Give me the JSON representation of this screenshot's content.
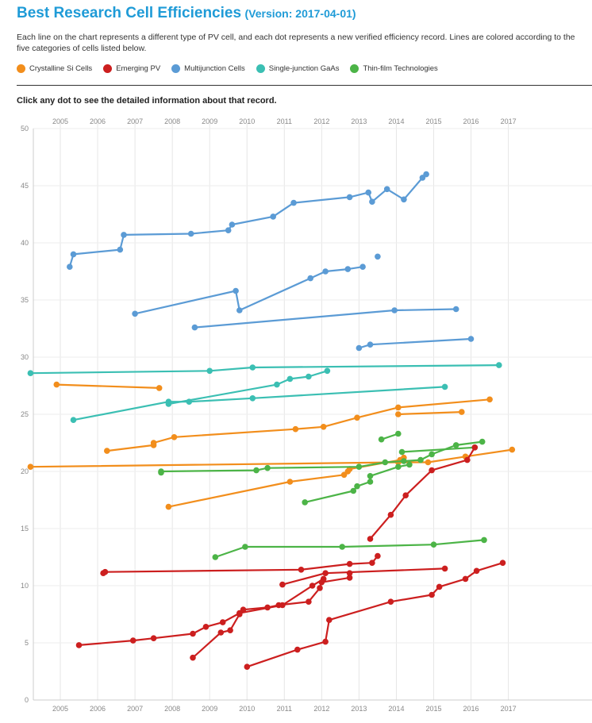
{
  "header": {
    "title": "Best Research Cell Efficiencies",
    "version": "(Version: 2017-04-01)",
    "description": "Each line on the chart represents a different type of PV cell, and each dot represents a new verified efficiency record. Lines are colored according to the five categories of cells listed below.",
    "hint": "Click any dot to see the detailed information about that record."
  },
  "legend": [
    {
      "label": "Crystalline Si Cells",
      "color": "#f28e1c"
    },
    {
      "label": "Emerging PV",
      "color": "#cc1f1f"
    },
    {
      "label": "Multijunction Cells",
      "color": "#5b9bd5"
    },
    {
      "label": "Single-junction GaAs",
      "color": "#3bbfb3"
    },
    {
      "label": "Thin-film Technologies",
      "color": "#4cb447"
    }
  ],
  "chart_data": {
    "type": "line",
    "xlim": [
      2004.2,
      2017.1
    ],
    "ylim": [
      0,
      50
    ],
    "x_ticks": [
      "2005",
      "2006",
      "2007",
      "2008",
      "2009",
      "2010",
      "2011",
      "2012",
      "2013",
      "2014",
      "2015",
      "2016",
      "2017"
    ],
    "y_ticks": [
      "0",
      "5",
      "10",
      "15",
      "20",
      "25",
      "30",
      "35",
      "40",
      "45",
      "50"
    ],
    "grid": true,
    "series": [
      {
        "category": "Multijunction Cells",
        "color": "#5b9bd5",
        "points": [
          [
            2005.25,
            37.9
          ],
          [
            2005.35,
            39.0
          ],
          [
            2006.6,
            39.4
          ],
          [
            2006.7,
            40.7
          ],
          [
            2008.5,
            40.8
          ],
          [
            2009.5,
            41.1
          ],
          [
            2009.6,
            41.6
          ],
          [
            2010.7,
            42.3
          ],
          [
            2011.25,
            43.5
          ],
          [
            2012.75,
            44.0
          ],
          [
            2013.25,
            44.4
          ],
          [
            2013.35,
            43.6
          ],
          [
            2013.75,
            44.7
          ],
          [
            2014.2,
            43.8
          ],
          [
            2014.7,
            45.7
          ],
          [
            2014.8,
            46.0
          ]
        ]
      },
      {
        "category": "Multijunction Cells",
        "color": "#5b9bd5",
        "points": [
          [
            2013.5,
            38.8
          ]
        ]
      },
      {
        "category": "Multijunction Cells",
        "color": "#5b9bd5",
        "points": [
          [
            2007.0,
            33.8
          ],
          [
            2009.7,
            35.8
          ],
          [
            2009.8,
            34.1
          ],
          [
            2011.7,
            36.9
          ],
          [
            2012.1,
            37.5
          ],
          [
            2012.7,
            37.7
          ],
          [
            2013.1,
            37.9
          ]
        ]
      },
      {
        "category": "Multijunction Cells",
        "color": "#5b9bd5",
        "points": [
          [
            2008.6,
            32.6
          ],
          [
            2013.95,
            34.1
          ],
          [
            2015.6,
            34.2
          ]
        ]
      },
      {
        "category": "Multijunction Cells",
        "color": "#5b9bd5",
        "points": [
          [
            2013.0,
            30.8
          ],
          [
            2013.3,
            31.1
          ],
          [
            2016.0,
            31.6
          ]
        ]
      },
      {
        "category": "Single-junction GaAs",
        "color": "#3bbfb3",
        "points": [
          [
            2004.2,
            28.6
          ],
          [
            2009.0,
            28.8
          ],
          [
            2010.15,
            29.1
          ],
          [
            2016.75,
            29.3
          ]
        ]
      },
      {
        "category": "Single-junction GaAs",
        "color": "#3bbfb3",
        "points": [
          [
            2007.9,
            25.9
          ],
          [
            2010.8,
            27.6
          ],
          [
            2011.15,
            28.1
          ],
          [
            2011.65,
            28.3
          ],
          [
            2012.15,
            28.8
          ]
        ]
      },
      {
        "category": "Single-junction GaAs",
        "color": "#3bbfb3",
        "points": [
          [
            2005.35,
            24.5
          ],
          [
            2007.9,
            26.1
          ],
          [
            2008.45,
            26.1
          ],
          [
            2010.15,
            26.4
          ],
          [
            2015.3,
            27.4
          ]
        ]
      },
      {
        "category": "Crystalline Si Cells",
        "color": "#f28e1c",
        "points": [
          [
            2004.9,
            27.6
          ],
          [
            2007.65,
            27.3
          ]
        ]
      },
      {
        "category": "Crystalline Si Cells",
        "color": "#f28e1c",
        "points": [
          [
            2006.25,
            21.8
          ],
          [
            2007.5,
            22.3
          ],
          [
            2007.5,
            22.5
          ],
          [
            2008.05,
            23.0
          ],
          [
            2011.3,
            23.7
          ],
          [
            2012.05,
            23.9
          ],
          [
            2012.95,
            24.7
          ],
          [
            2014.05,
            25.6
          ],
          [
            2016.5,
            26.3
          ]
        ]
      },
      {
        "category": "Crystalline Si Cells",
        "color": "#f28e1c",
        "points": [
          [
            2014.05,
            25.0
          ],
          [
            2015.75,
            25.2
          ]
        ]
      },
      {
        "category": "Crystalline Si Cells",
        "color": "#f28e1c",
        "points": [
          [
            2004.2,
            20.4
          ],
          [
            2014.05,
            20.8
          ],
          [
            2014.85,
            20.8
          ],
          [
            2015.85,
            21.3
          ],
          [
            2017.1,
            21.9
          ]
        ]
      },
      {
        "category": "Crystalline Si Cells",
        "color": "#f28e1c",
        "points": [
          [
            2007.9,
            16.9
          ],
          [
            2011.15,
            19.1
          ],
          [
            2012.6,
            19.7
          ],
          [
            2012.7,
            20.0
          ],
          [
            2012.75,
            20.2
          ],
          [
            2014.1,
            21.0
          ],
          [
            2014.2,
            21.2
          ]
        ]
      },
      {
        "category": "Thin-film Technologies",
        "color": "#4cb447",
        "points": [
          [
            2013.6,
            22.8
          ],
          [
            2014.05,
            23.3
          ]
        ]
      },
      {
        "category": "Thin-film Technologies",
        "color": "#4cb447",
        "points": [
          [
            2007.7,
            19.9
          ],
          [
            2007.7,
            20.0
          ],
          [
            2010.25,
            20.1
          ],
          [
            2010.55,
            20.3
          ],
          [
            2013.0,
            20.4
          ],
          [
            2013.7,
            20.8
          ],
          [
            2014.2,
            20.9
          ],
          [
            2014.65,
            21.0
          ],
          [
            2014.95,
            21.5
          ],
          [
            2015.6,
            22.3
          ],
          [
            2016.3,
            22.6
          ]
        ]
      },
      {
        "category": "Thin-film Technologies",
        "color": "#4cb447",
        "points": [
          [
            2014.15,
            21.7
          ],
          [
            2016.1,
            22.1
          ]
        ]
      },
      {
        "category": "Thin-film Technologies",
        "color": "#4cb447",
        "points": [
          [
            2011.55,
            17.3
          ],
          [
            2012.85,
            18.3
          ],
          [
            2012.95,
            18.7
          ],
          [
            2013.3,
            19.1
          ],
          [
            2013.3,
            19.6
          ],
          [
            2014.05,
            20.4
          ],
          [
            2014.35,
            20.6
          ]
        ]
      },
      {
        "category": "Thin-film Technologies",
        "color": "#4cb447",
        "points": [
          [
            2009.15,
            12.5
          ],
          [
            2009.95,
            13.4
          ],
          [
            2012.55,
            13.4
          ],
          [
            2015.0,
            13.6
          ],
          [
            2016.35,
            14.0
          ]
        ]
      },
      {
        "category": "Emerging PV",
        "color": "#cc1f1f",
        "points": [
          [
            2013.3,
            14.1
          ],
          [
            2013.85,
            16.2
          ],
          [
            2014.25,
            17.9
          ],
          [
            2014.95,
            20.1
          ],
          [
            2015.9,
            21.0
          ],
          [
            2016.1,
            22.1
          ]
        ]
      },
      {
        "category": "Emerging PV",
        "color": "#cc1f1f",
        "points": [
          [
            2006.15,
            11.1
          ],
          [
            2006.2,
            11.2
          ],
          [
            2011.45,
            11.4
          ],
          [
            2012.75,
            11.9
          ],
          [
            2013.35,
            12.0
          ],
          [
            2013.5,
            12.6
          ]
        ]
      },
      {
        "category": "Emerging PV",
        "color": "#cc1f1f",
        "points": [
          [
            2010.95,
            10.1
          ],
          [
            2012.1,
            11.1
          ],
          [
            2015.3,
            11.5
          ]
        ]
      },
      {
        "category": "Emerging PV",
        "color": "#cc1f1f",
        "points": [
          [
            2008.55,
            3.7
          ],
          [
            2009.3,
            5.9
          ],
          [
            2009.55,
            6.1
          ],
          [
            2009.8,
            7.5
          ],
          [
            2009.9,
            7.9
          ],
          [
            2010.55,
            8.1
          ],
          [
            2010.85,
            8.3
          ],
          [
            2011.65,
            8.6
          ],
          [
            2011.95,
            9.8
          ],
          [
            2012.0,
            10.3
          ],
          [
            2012.75,
            10.7
          ],
          [
            2012.75,
            11.1
          ]
        ]
      },
      {
        "category": "Emerging PV",
        "color": "#cc1f1f",
        "points": [
          [
            2005.5,
            4.8
          ],
          [
            2006.95,
            5.2
          ],
          [
            2007.5,
            5.4
          ],
          [
            2008.55,
            5.8
          ],
          [
            2008.9,
            6.4
          ],
          [
            2009.35,
            6.8
          ],
          [
            2009.8,
            7.6
          ],
          [
            2010.95,
            8.3
          ],
          [
            2011.75,
            10.0
          ],
          [
            2012.05,
            10.6
          ]
        ]
      },
      {
        "category": "Emerging PV",
        "color": "#cc1f1f",
        "points": [
          [
            2010.0,
            2.9
          ],
          [
            2011.35,
            4.4
          ],
          [
            2012.1,
            5.1
          ],
          [
            2012.2,
            7.0
          ],
          [
            2013.85,
            8.6
          ],
          [
            2014.95,
            9.2
          ],
          [
            2015.15,
            9.9
          ],
          [
            2015.85,
            10.6
          ],
          [
            2016.15,
            11.3
          ],
          [
            2016.85,
            12.0
          ]
        ]
      }
    ]
  }
}
